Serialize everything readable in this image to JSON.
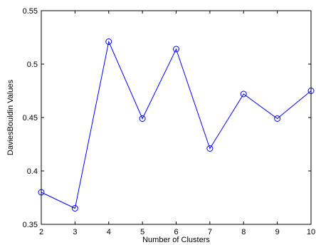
{
  "chart_data": {
    "type": "line",
    "title": "",
    "xlabel": "Number of Clusters",
    "ylabel": "DaviesBouldin Values",
    "xlim": [
      2,
      10
    ],
    "ylim": [
      0.35,
      0.55
    ],
    "xticks": [
      2,
      3,
      4,
      5,
      6,
      7,
      8,
      9,
      10
    ],
    "yticks": [
      0.35,
      0.4,
      0.45,
      0.5,
      0.55
    ],
    "xtick_labels": [
      "2",
      "3",
      "4",
      "5",
      "6",
      "7",
      "8",
      "9",
      "10"
    ],
    "ytick_labels": [
      "0.35",
      "0.4",
      "0.45",
      "0.5",
      "0.55"
    ],
    "grid": false,
    "marker": "circle",
    "line_color": "#0000ff",
    "x": [
      2,
      3,
      4,
      5,
      6,
      7,
      8,
      9,
      10
    ],
    "y": [
      0.38,
      0.365,
      0.521,
      0.449,
      0.514,
      0.421,
      0.472,
      0.449,
      0.475
    ]
  }
}
